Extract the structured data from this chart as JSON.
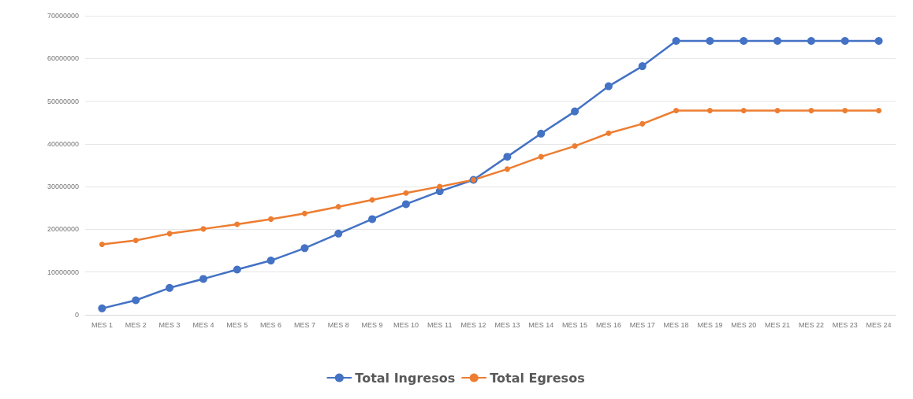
{
  "chart_data": {
    "type": "line",
    "categories": [
      "MES 1",
      "MES 2",
      "MES 3",
      "MES 4",
      "MES 5",
      "MES 6",
      "MES 7",
      "MES 8",
      "MES 9",
      "MES 10",
      "MES 11",
      "MES 12",
      "MES 13",
      "MES 14",
      "MES 15",
      "MES 16",
      "MES 17",
      "MES 18",
      "MES 19",
      "MES 20",
      "MES 21",
      "MES 22",
      "MES 23",
      "MES 24"
    ],
    "series": [
      {
        "name": "Total Ingresos",
        "color": "#4472c4",
        "values": [
          1500000,
          3400000,
          6300000,
          8400000,
          10600000,
          12700000,
          15600000,
          19000000,
          22400000,
          25900000,
          28900000,
          31600000,
          37000000,
          42400000,
          47600000,
          53500000,
          58200000,
          64100000,
          64100000,
          64100000,
          64100000,
          64100000,
          64100000,
          64100000
        ]
      },
      {
        "name": "Total Egresos",
        "color": "#ed7d31",
        "values": [
          16500000,
          17400000,
          19000000,
          20100000,
          21200000,
          22400000,
          23700000,
          25300000,
          26900000,
          28500000,
          30000000,
          31600000,
          34100000,
          37000000,
          39500000,
          42500000,
          44700000,
          47800000,
          47800000,
          47800000,
          47800000,
          47800000,
          47800000,
          47800000
        ]
      }
    ],
    "ylim": [
      0,
      70000000
    ],
    "yticks": [
      0,
      10000000,
      20000000,
      30000000,
      40000000,
      50000000,
      60000000,
      70000000
    ],
    "grid": "y",
    "legend": "bottom",
    "marker": "circle",
    "line_style": "solid"
  }
}
